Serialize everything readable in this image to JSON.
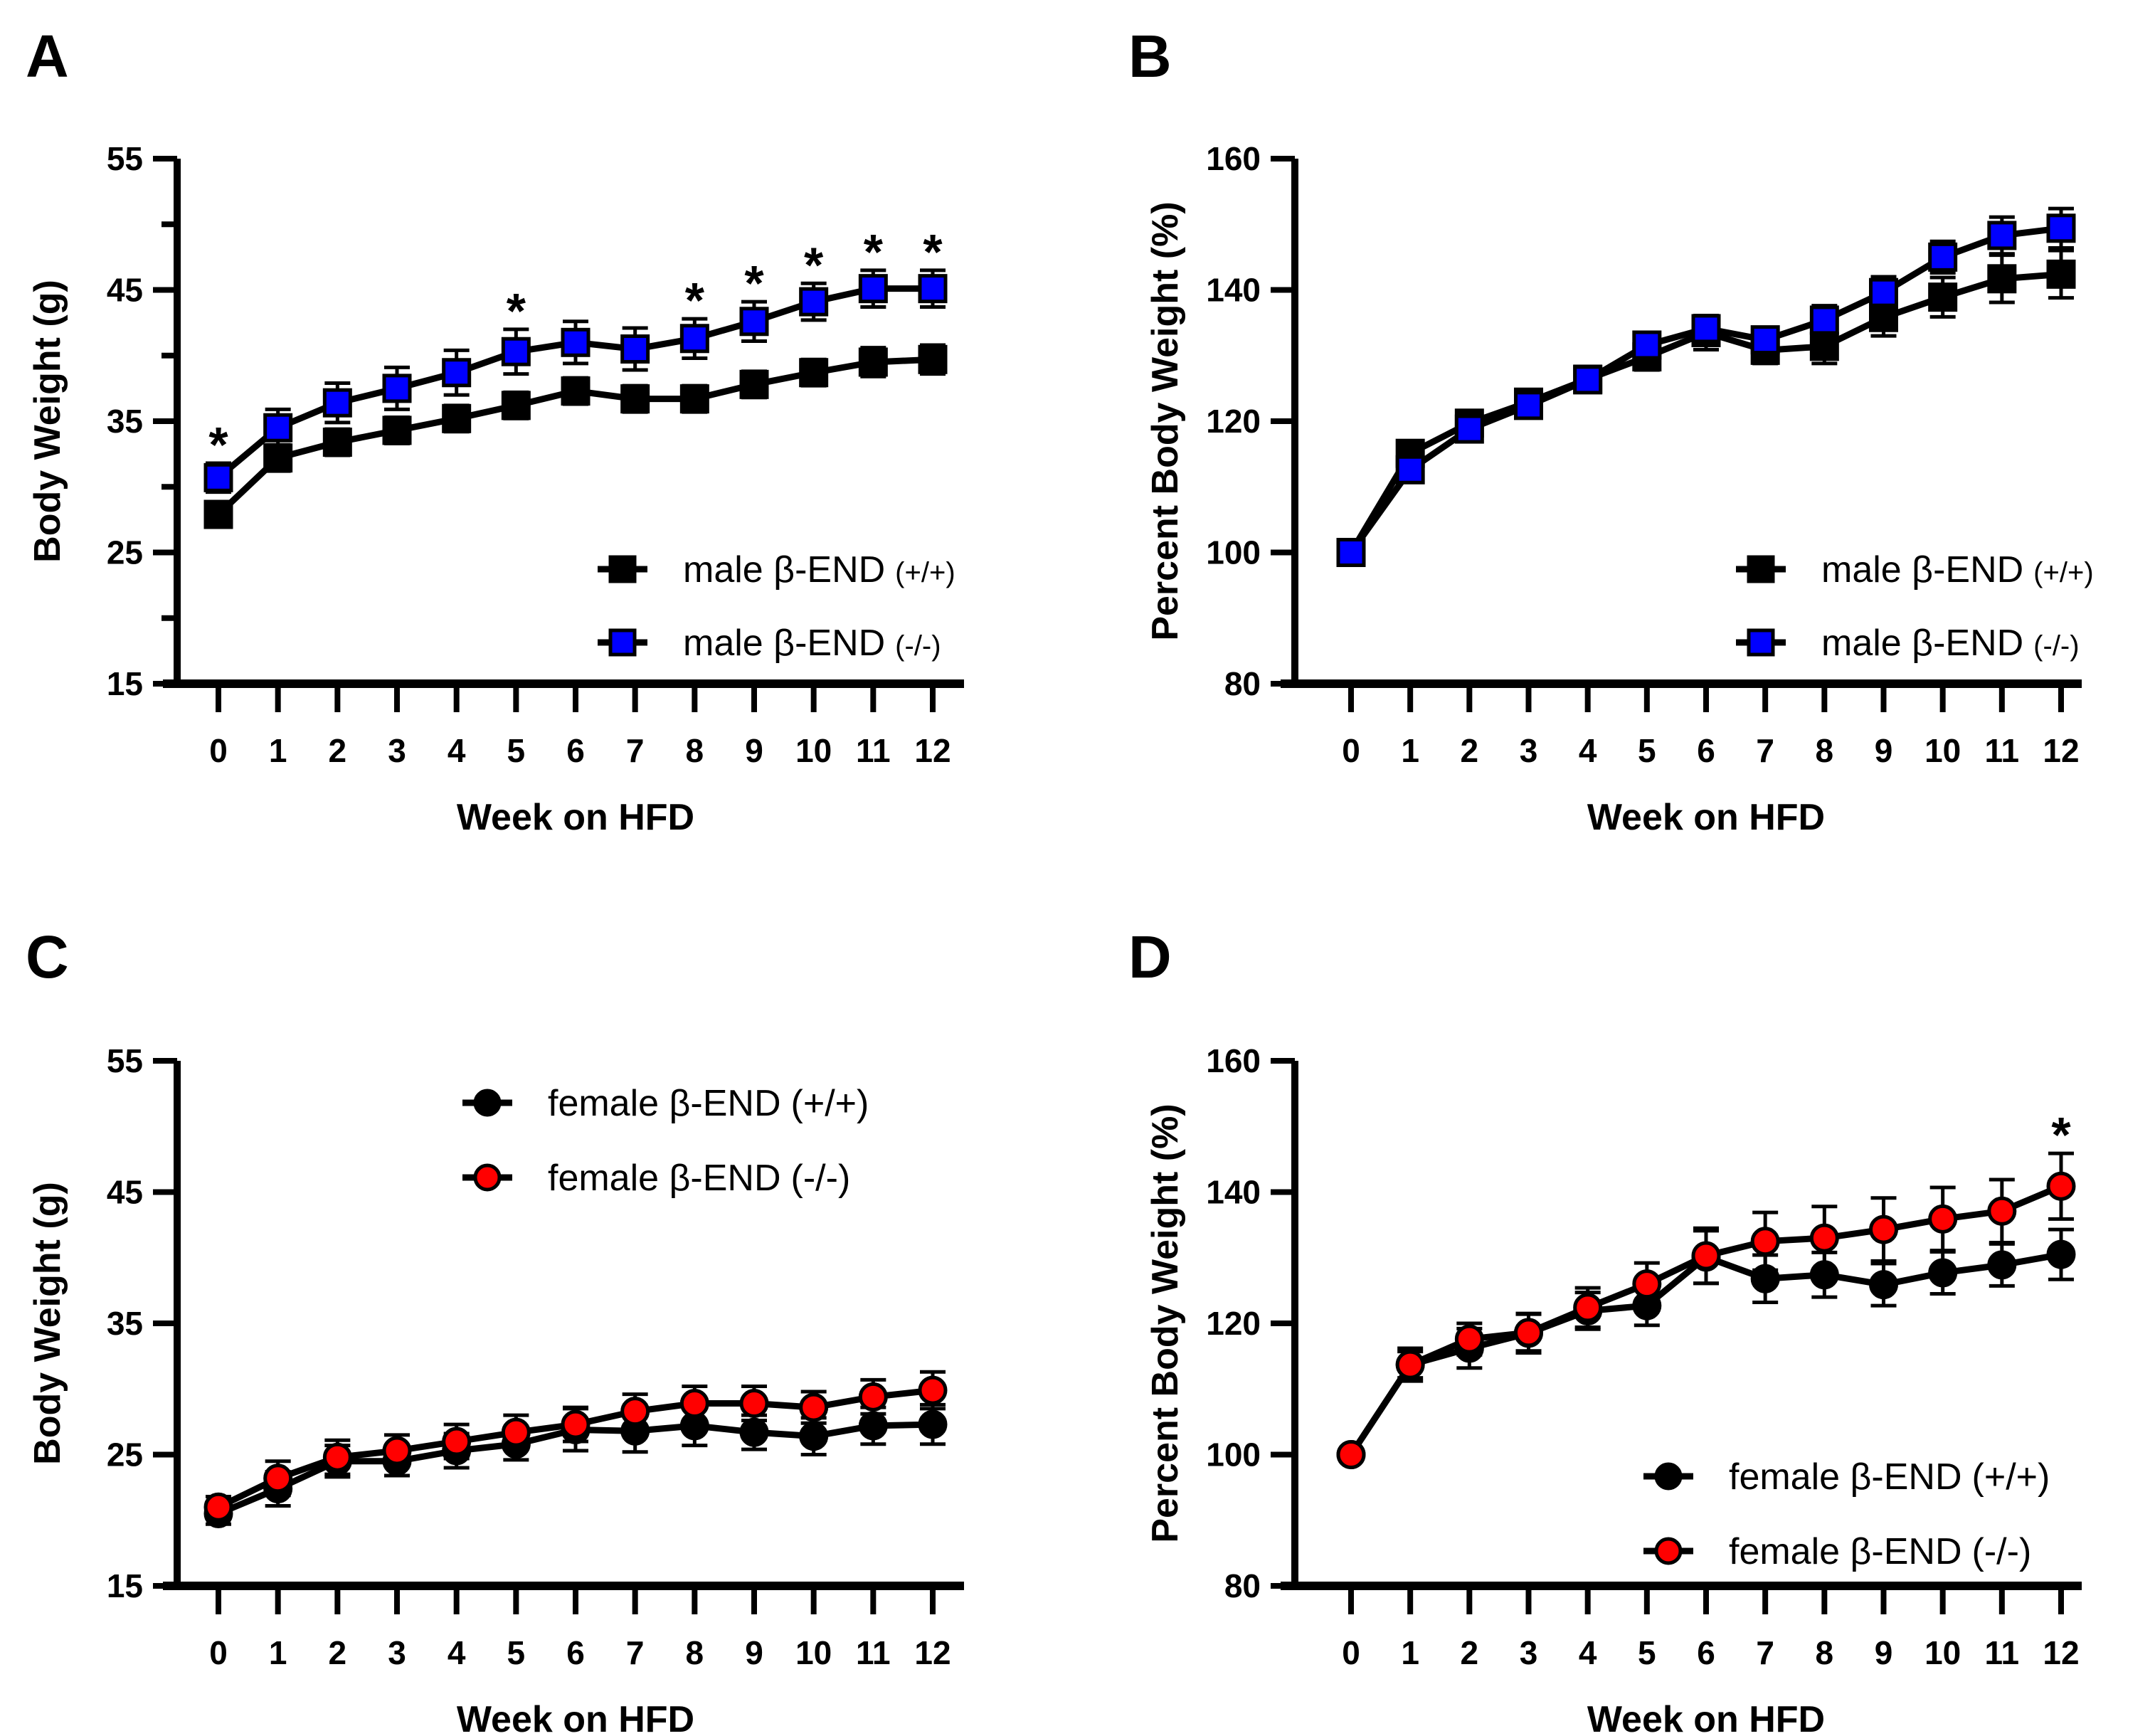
{
  "figure": {
    "panel_letters": [
      "A",
      "B",
      "C",
      "D"
    ]
  },
  "chart_data": [
    {
      "panel": "A",
      "type": "line",
      "title": "",
      "xlabel": "Week on HFD",
      "ylabel": "Body Weight (g)",
      "x": [
        0,
        1,
        2,
        3,
        4,
        5,
        6,
        7,
        8,
        9,
        10,
        11,
        12
      ],
      "xticks": [
        "0",
        "1",
        "2",
        "3",
        "4",
        "5",
        "6",
        "7",
        "8",
        "9",
        "10",
        "11",
        "12"
      ],
      "ylim": [
        15,
        55
      ],
      "yticks": [
        15,
        25,
        35,
        45,
        55
      ],
      "yminor": [
        20,
        30,
        40,
        50
      ],
      "grid": false,
      "legend_position": "bottom-right",
      "series": [
        {
          "name": "male β-END",
          "suffix": "(+/+)",
          "marker": "square",
          "color": "#000000",
          "values": [
            27.9,
            32.2,
            33.4,
            34.3,
            35.2,
            36.2,
            37.3,
            36.7,
            36.7,
            37.8,
            38.7,
            39.5,
            39.7
          ],
          "error": [
            0.6,
            1.0,
            1.0,
            1.0,
            1.0,
            1.0,
            1.0,
            1.0,
            1.0,
            1.0,
            1.0,
            1.1,
            1.1
          ]
        },
        {
          "name": "male β-END",
          "suffix": "(-/-)",
          "marker": "square",
          "color": "#0000ff",
          "values": [
            30.7,
            34.5,
            36.4,
            37.5,
            38.7,
            40.3,
            41.0,
            40.5,
            41.3,
            42.6,
            44.1,
            45.1,
            45.1
          ],
          "error": [
            1.1,
            1.4,
            1.5,
            1.6,
            1.7,
            1.7,
            1.6,
            1.6,
            1.5,
            1.5,
            1.4,
            1.4,
            1.4
          ]
        }
      ],
      "significance": {
        "symbol": "*",
        "weeks": [
          0,
          5,
          8,
          9,
          10,
          11,
          12
        ]
      }
    },
    {
      "panel": "B",
      "type": "line",
      "title": "",
      "xlabel": "Week on HFD",
      "ylabel": "Percent Body Weight (%)",
      "x": [
        0,
        1,
        2,
        3,
        4,
        5,
        6,
        7,
        8,
        9,
        10,
        11,
        12
      ],
      "xticks": [
        "0",
        "1",
        "2",
        "3",
        "4",
        "5",
        "6",
        "7",
        "8",
        "9",
        "10",
        "11",
        "12"
      ],
      "ylim": [
        80,
        160
      ],
      "yticks": [
        80,
        100,
        120,
        140,
        160
      ],
      "yminor": [],
      "grid": false,
      "legend_position": "bottom-right",
      "series": [
        {
          "name": "male β-END",
          "suffix": "(+/+)",
          "marker": "square",
          "color": "#000000",
          "values": [
            100,
            115.1,
            119.7,
            122.9,
            126.4,
            129.8,
            133.5,
            130.8,
            131.4,
            135.8,
            138.9,
            141.7,
            142.4
          ],
          "error": [
            0,
            1.0,
            1.0,
            1.0,
            1.2,
            2.0,
            2.6,
            2.0,
            2.6,
            2.8,
            3.0,
            3.6,
            3.6
          ]
        },
        {
          "name": "male β-END",
          "suffix": "(-/-)",
          "marker": "square",
          "color": "#0000ff",
          "values": [
            100,
            112.6,
            118.8,
            122.4,
            126.3,
            131.6,
            134.1,
            132.4,
            135.4,
            139.6,
            145.0,
            148.3,
            149.4
          ],
          "error": [
            0,
            1.0,
            1.0,
            1.0,
            1.2,
            1.2,
            2.0,
            1.6,
            2.2,
            2.4,
            2.4,
            2.8,
            3.0
          ]
        }
      ],
      "significance": {
        "symbol": "*",
        "weeks": []
      }
    },
    {
      "panel": "C",
      "type": "line",
      "title": "",
      "xlabel": "Week on HFD",
      "ylabel": "Body Weight (g)",
      "x": [
        0,
        1,
        2,
        3,
        4,
        5,
        6,
        7,
        8,
        9,
        10,
        11,
        12
      ],
      "xticks": [
        "0",
        "1",
        "2",
        "3",
        "4",
        "5",
        "6",
        "7",
        "8",
        "9",
        "10",
        "11",
        "12"
      ],
      "ylim": [
        15,
        55
      ],
      "yticks": [
        15,
        25,
        35,
        45,
        55
      ],
      "yminor": [],
      "grid": false,
      "legend_position": "top-right",
      "series": [
        {
          "name": "female β-END",
          "suffix": "(+/+)",
          "marker": "circle",
          "color": "#000000",
          "values": [
            20.5,
            22.4,
            24.5,
            24.5,
            25.3,
            25.8,
            26.9,
            26.8,
            27.2,
            26.7,
            26.4,
            27.2,
            27.3
          ],
          "error": [
            0.8,
            1.3,
            1.2,
            1.1,
            1.3,
            1.2,
            1.6,
            1.6,
            1.5,
            1.3,
            1.4,
            1.4,
            1.5
          ]
        },
        {
          "name": "female β-END",
          "suffix": "(-/-)",
          "marker": "circle",
          "color": "#ff0000",
          "values": [
            21.0,
            23.2,
            24.8,
            25.3,
            26.0,
            26.7,
            27.3,
            28.3,
            28.9,
            28.9,
            28.6,
            29.4,
            29.9
          ],
          "error": [
            0.8,
            1.3,
            1.3,
            1.2,
            1.3,
            1.3,
            1.3,
            1.3,
            1.3,
            1.3,
            1.2,
            1.3,
            1.4
          ]
        }
      ],
      "significance": {
        "symbol": "*",
        "weeks": []
      }
    },
    {
      "panel": "D",
      "type": "line",
      "title": "",
      "xlabel": "Week on HFD",
      "ylabel": "Percent Body Weight (%)",
      "x": [
        0,
        1,
        2,
        3,
        4,
        5,
        6,
        7,
        8,
        9,
        10,
        11,
        12
      ],
      "xticks": [
        "0",
        "1",
        "2",
        "3",
        "4",
        "5",
        "6",
        "7",
        "8",
        "9",
        "10",
        "11",
        "12"
      ],
      "ylim": [
        80,
        160
      ],
      "yticks": [
        80,
        100,
        120,
        140,
        160
      ],
      "yminor": [],
      "grid": false,
      "legend_position": "bottom-right",
      "series": [
        {
          "name": "female β-END",
          "suffix": "(+/+)",
          "marker": "circle",
          "color": "#000000",
          "values": [
            100,
            113.7,
            116.2,
            118.5,
            121.9,
            122.7,
            130.1,
            126.8,
            127.4,
            125.9,
            127.7,
            128.9,
            130.5
          ],
          "error": [
            0,
            2.0,
            3.0,
            3.0,
            2.8,
            3.0,
            4.0,
            3.6,
            3.4,
            3.2,
            3.2,
            3.2,
            3.8
          ]
        },
        {
          "name": "female β-END",
          "suffix": "(-/-)",
          "marker": "circle",
          "color": "#ff0000",
          "values": [
            100,
            113.7,
            117.6,
            118.6,
            122.4,
            126.0,
            130.3,
            132.5,
            133.0,
            134.3,
            135.9,
            137.1,
            140.9
          ],
          "error": [
            0,
            2.5,
            2.4,
            2.8,
            3.0,
            3.2,
            4.2,
            4.4,
            4.8,
            4.8,
            4.8,
            4.8,
            5.0
          ]
        }
      ],
      "significance": {
        "symbol": "*",
        "weeks": [
          12
        ]
      }
    }
  ]
}
